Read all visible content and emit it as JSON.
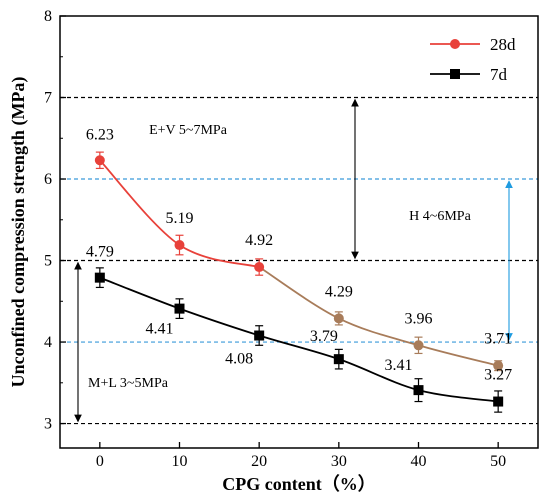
{
  "chart_data": {
    "type": "line",
    "x": [
      0,
      10,
      20,
      30,
      40,
      50
    ],
    "xlabel": "CPG content（%）",
    "ylabel": "Unconfined compression strength (MPa)",
    "xlim": [
      -5,
      55
    ],
    "ylim": [
      2.7,
      8
    ],
    "xticks": [
      "0",
      "10",
      "20",
      "30",
      "40",
      "50"
    ],
    "yticks": [
      "3",
      "4",
      "5",
      "6",
      "7",
      "8"
    ],
    "grid": false,
    "legend_position": "top-right",
    "series": [
      {
        "name": "28d",
        "marker": "circle",
        "color": "#e8413a",
        "color_late": "#a87c5a",
        "values": [
          6.23,
          5.19,
          4.92,
          4.29,
          3.96,
          3.71
        ],
        "errors": [
          0.1,
          0.12,
          0.1,
          0.08,
          0.1,
          0.06
        ],
        "labels": [
          "6.23",
          "5.19",
          "4.92",
          "4.29",
          "3.96",
          "3.71"
        ]
      },
      {
        "name": "7d",
        "marker": "square",
        "color": "#000000",
        "values": [
          4.79,
          4.41,
          4.08,
          3.79,
          3.41,
          3.27
        ],
        "errors": [
          0.12,
          0.12,
          0.12,
          0.12,
          0.14,
          0.13
        ],
        "labels": [
          "4.79",
          "4.41",
          "4.08",
          "3.79",
          "3.41",
          "3.27"
        ]
      }
    ],
    "reference_lines": [
      {
        "y": 7,
        "color": "#000000"
      },
      {
        "y": 6,
        "color": "#3a9ad9"
      },
      {
        "y": 5,
        "color": "#000000"
      },
      {
        "y": 4,
        "color": "#3a9ad9"
      },
      {
        "y": 3,
        "color": "#000000"
      }
    ],
    "zones": [
      {
        "label": "E+V  5~7MPa",
        "from": 5,
        "to": 7,
        "color": "#000000"
      },
      {
        "label": "H  4~6MPa",
        "from": 4,
        "to": 6,
        "color": "#1e9be0"
      },
      {
        "label": "M+L  3~5MPa",
        "from": 3,
        "to": 5,
        "color": "#000000"
      }
    ]
  }
}
